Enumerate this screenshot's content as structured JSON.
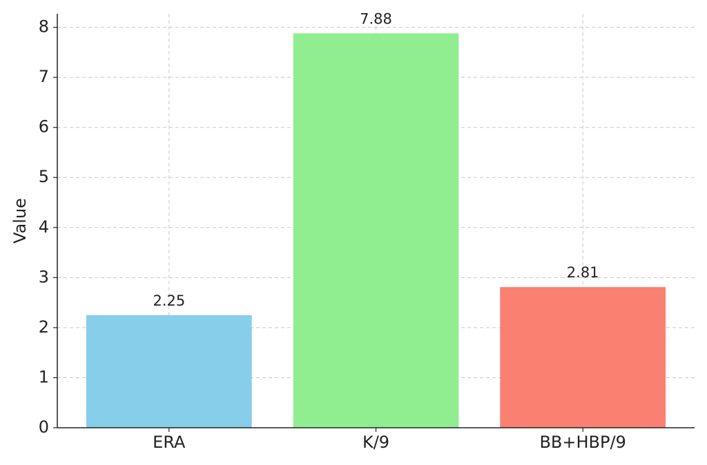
{
  "chart_data": {
    "type": "bar",
    "ylabel": "Value",
    "categories": [
      "ERA",
      "K/9",
      "BB+HBP/9"
    ],
    "values": [
      2.25,
      7.88,
      2.81
    ],
    "colors": [
      "#87ceeb",
      "#90ee90",
      "#fa8072"
    ],
    "ylim": [
      0,
      8.27
    ],
    "yticks": [
      0,
      1,
      2,
      3,
      4,
      5,
      6,
      7,
      8
    ],
    "grid": true
  }
}
